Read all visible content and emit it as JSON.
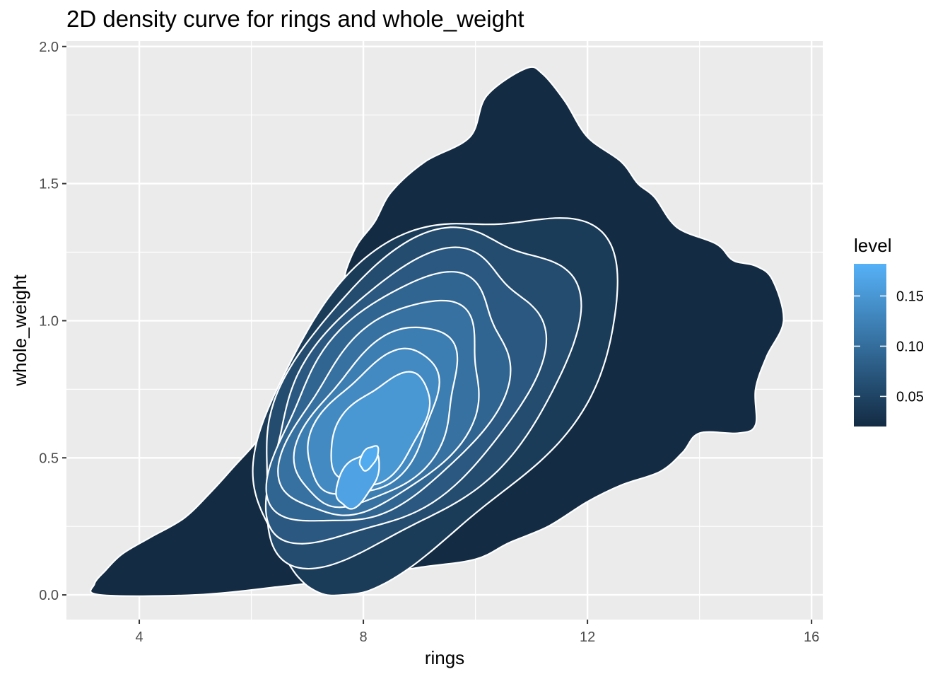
{
  "chart_data": {
    "type": "density_2d_filled",
    "title": "2D density curve for rings and whole_weight",
    "xlabel": "rings",
    "ylabel": "whole_weight",
    "xlim": [
      2.7,
      16.2
    ],
    "ylim": [
      -0.09,
      2.02
    ],
    "x_ticks": [
      {
        "value": 4,
        "label": "4"
      },
      {
        "value": 8,
        "label": "8"
      },
      {
        "value": 12,
        "label": "12"
      },
      {
        "value": 16,
        "label": "16"
      }
    ],
    "y_ticks": [
      {
        "value": 0.0,
        "label": "0.0"
      },
      {
        "value": 0.5,
        "label": "0.5"
      },
      {
        "value": 1.0,
        "label": "1.0"
      },
      {
        "value": 1.5,
        "label": "1.5"
      },
      {
        "value": 2.0,
        "label": "2.0"
      }
    ],
    "grid": true,
    "background": "#ebebeb",
    "contour_stroke": "#ffffff",
    "legend": {
      "title": "level",
      "position": "right",
      "range": [
        0.02,
        0.182
      ],
      "ticks": [
        {
          "value": 0.05,
          "label": "0.05"
        },
        {
          "value": 0.1,
          "label": "0.10"
        },
        {
          "value": 0.15,
          "label": "0.15"
        }
      ],
      "color_low": "#132b43",
      "color_high": "#56b1f7"
    },
    "levels": [
      {
        "level": 0.02,
        "center": [
          9.5,
          0.72
        ],
        "radius": [
          6.7,
          1.25
        ],
        "pts": [
          [
            3.3,
            0.0
          ],
          [
            3.2,
            0.04
          ],
          [
            3.4,
            0.09
          ],
          [
            3.7,
            0.15
          ],
          [
            4.2,
            0.21
          ],
          [
            4.8,
            0.28
          ],
          [
            5.3,
            0.38
          ],
          [
            5.7,
            0.47
          ],
          [
            6.1,
            0.56
          ],
          [
            6.6,
            0.69
          ],
          [
            7.0,
            0.82
          ],
          [
            7.3,
            0.98
          ],
          [
            7.6,
            1.1
          ],
          [
            7.7,
            1.19
          ],
          [
            7.9,
            1.28
          ],
          [
            8.2,
            1.36
          ],
          [
            8.5,
            1.47
          ],
          [
            9.1,
            1.58
          ],
          [
            9.9,
            1.67
          ],
          [
            10.2,
            1.82
          ],
          [
            10.9,
            1.92
          ],
          [
            11.2,
            1.9
          ],
          [
            11.6,
            1.8
          ],
          [
            12.0,
            1.67
          ],
          [
            12.6,
            1.58
          ],
          [
            12.9,
            1.5
          ],
          [
            13.2,
            1.45
          ],
          [
            13.6,
            1.34
          ],
          [
            14.3,
            1.28
          ],
          [
            14.6,
            1.22
          ],
          [
            15.0,
            1.2
          ],
          [
            15.3,
            1.15
          ],
          [
            15.5,
            1.0
          ],
          [
            15.2,
            0.87
          ],
          [
            15.0,
            0.75
          ],
          [
            15.0,
            0.62
          ],
          [
            14.7,
            0.59
          ],
          [
            14.0,
            0.59
          ],
          [
            13.7,
            0.52
          ],
          [
            13.3,
            0.45
          ],
          [
            12.6,
            0.4
          ],
          [
            12.0,
            0.34
          ],
          [
            11.3,
            0.25
          ],
          [
            10.6,
            0.19
          ],
          [
            10.0,
            0.13
          ],
          [
            9.0,
            0.1
          ],
          [
            7.7,
            0.06
          ],
          [
            6.5,
            0.03
          ],
          [
            5.0,
            0.0
          ]
        ]
      },
      {
        "level": 0.04,
        "center": [
          9.2,
          0.74
        ],
        "radius": [
          5.9,
          1.08
        ]
      },
      {
        "level": 0.06,
        "center": [
          8.9,
          0.74
        ],
        "radius": [
          5.1,
          0.95
        ]
      },
      {
        "level": 0.075,
        "center": [
          8.7,
          0.72
        ],
        "radius": [
          4.4,
          0.83
        ]
      },
      {
        "level": 0.09,
        "center": [
          8.5,
          0.7
        ],
        "radius": [
          3.8,
          0.72
        ]
      },
      {
        "level": 0.105,
        "center": [
          8.4,
          0.67
        ],
        "radius": [
          3.2,
          0.62
        ]
      },
      {
        "level": 0.12,
        "center": [
          8.3,
          0.64
        ],
        "radius": [
          2.6,
          0.52
        ]
      },
      {
        "level": 0.135,
        "center": [
          8.2,
          0.62
        ],
        "radius": [
          2.1,
          0.42
        ]
      },
      {
        "level": 0.15,
        "center": [
          8.3,
          0.6
        ],
        "radius": [
          1.6,
          0.32
        ]
      },
      {
        "level": 0.165,
        "center": [
          7.9,
          0.42
        ],
        "radius": [
          0.7,
          0.16
        ]
      },
      {
        "level": 0.175,
        "center": [
          8.1,
          0.5
        ],
        "radius": [
          0.3,
          0.07
        ]
      }
    ]
  }
}
